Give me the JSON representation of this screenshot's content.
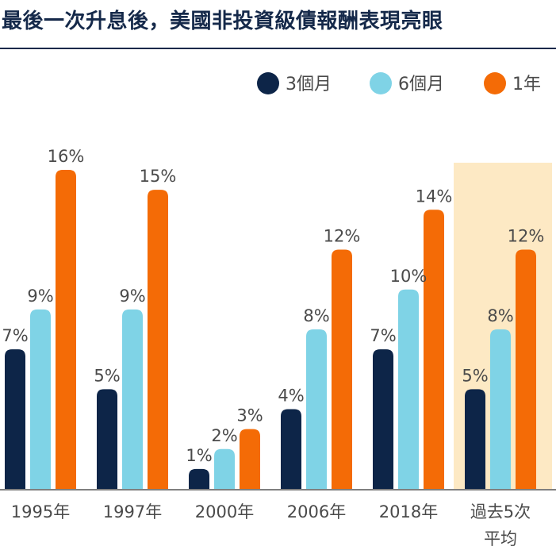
{
  "title": "最後一次升息後，美國非投資級債報酬表現亮眼",
  "colors": {
    "title": "#15294a",
    "series_3m": "#0d2548",
    "series_6m": "#7fd3e6",
    "series_1y": "#f46b06",
    "highlight": "#fde9c4",
    "axis": "#7f7f7f",
    "label": "#4a4a4a"
  },
  "chart_data": {
    "type": "bar",
    "title": "最後一次升息後，美國非投資級債報酬表現亮眼",
    "categories": [
      "1995年",
      "1997年",
      "2000年",
      "2006年",
      "2018年",
      "過去5次平均"
    ],
    "category_lines": [
      [
        "1995年"
      ],
      [
        "1997年"
      ],
      [
        "2000年"
      ],
      [
        "2006年"
      ],
      [
        "2018年"
      ],
      [
        "過去5次",
        "平均"
      ]
    ],
    "series": [
      {
        "name": "3個月",
        "color": "#0d2548",
        "values": [
          7,
          5,
          1,
          4,
          7,
          5
        ]
      },
      {
        "name": "6個月",
        "color": "#7fd3e6",
        "values": [
          9,
          9,
          2,
          8,
          10,
          8
        ]
      },
      {
        "name": "1年",
        "color": "#f46b06",
        "values": [
          16,
          15,
          3,
          12,
          14,
          12
        ]
      }
    ],
    "value_suffix": "%",
    "ylim": [
      0,
      16
    ],
    "highlight_category": "過去5次平均",
    "legend_position": "top-right",
    "grid": false,
    "xlabel": "",
    "ylabel": ""
  }
}
